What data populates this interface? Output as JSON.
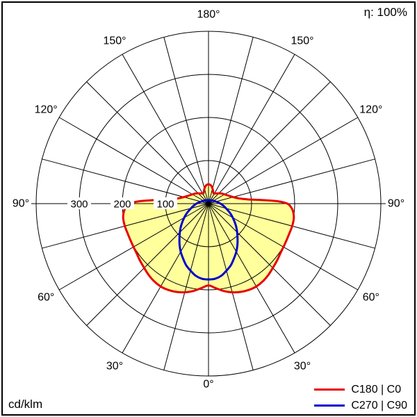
{
  "annotations": {
    "eta_label": "η: 100%"
  },
  "chart_data": {
    "type": "polar",
    "subtype": "luminous-intensity-distribution",
    "unit": "cd/klm",
    "gamma_zero_position": "bottom",
    "angle_grid_step_deg": 15,
    "angle_labels": [
      {
        "gamma": 0,
        "text": "0°"
      },
      {
        "gamma": 30,
        "text": "30°"
      },
      {
        "gamma": 60,
        "text": "60°"
      },
      {
        "gamma": 90,
        "text": "90°"
      },
      {
        "gamma": 120,
        "text": "120°"
      },
      {
        "gamma": 150,
        "text": "150°"
      },
      {
        "gamma": 180,
        "text": "180°"
      }
    ],
    "radial_ticks": [
      {
        "value": 100,
        "text": "100"
      },
      {
        "value": 200,
        "text": "200"
      },
      {
        "value": 300,
        "text": "300"
      }
    ],
    "radial_max": 400,
    "grid_color": "#000000",
    "series": [
      {
        "name": "C180 | C0",
        "color": "#e60000",
        "fill": "#ffff9c",
        "symmetric": true,
        "points_gamma_cd": [
          [
            0,
            190
          ],
          [
            5,
            197
          ],
          [
            10,
            206
          ],
          [
            15,
            213
          ],
          [
            20,
            218
          ],
          [
            25,
            221
          ],
          [
            30,
            222
          ],
          [
            35,
            220
          ],
          [
            40,
            216
          ],
          [
            45,
            211
          ],
          [
            50,
            207
          ],
          [
            55,
            203
          ],
          [
            60,
            201
          ],
          [
            65,
            200
          ],
          [
            70,
            200
          ],
          [
            75,
            201
          ],
          [
            80,
            201
          ],
          [
            84,
            198
          ],
          [
            87,
            193
          ],
          [
            90,
            183
          ],
          [
            92,
            160
          ],
          [
            94,
            122
          ],
          [
            96,
            93
          ],
          [
            98,
            80
          ],
          [
            100,
            71
          ],
          [
            105,
            59
          ],
          [
            110,
            52
          ],
          [
            115,
            47
          ],
          [
            120,
            43
          ],
          [
            125,
            40
          ],
          [
            130,
            37
          ],
          [
            135,
            34
          ],
          [
            140,
            31
          ],
          [
            145,
            29
          ],
          [
            150,
            27
          ],
          [
            155,
            27
          ],
          [
            160,
            31
          ],
          [
            165,
            36
          ],
          [
            170,
            41
          ],
          [
            175,
            44
          ],
          [
            180,
            45
          ]
        ]
      },
      {
        "name": "C270 | C90",
        "color": "#0000cc",
        "fill": null,
        "symmetric": true,
        "points_gamma_cd": [
          [
            0,
            176
          ],
          [
            5,
            175
          ],
          [
            10,
            170
          ],
          [
            15,
            161
          ],
          [
            20,
            152
          ],
          [
            25,
            140
          ],
          [
            30,
            129
          ],
          [
            35,
            117
          ],
          [
            40,
            105
          ],
          [
            45,
            94
          ],
          [
            50,
            84
          ],
          [
            55,
            74
          ],
          [
            60,
            65
          ],
          [
            65,
            57
          ],
          [
            70,
            49
          ],
          [
            75,
            42
          ],
          [
            80,
            37
          ],
          [
            85,
            32
          ],
          [
            90,
            28
          ],
          [
            95,
            24
          ],
          [
            100,
            21
          ],
          [
            105,
            18
          ],
          [
            110,
            16
          ],
          [
            115,
            14
          ],
          [
            120,
            13
          ],
          [
            130,
            12
          ],
          [
            140,
            10
          ],
          [
            150,
            9
          ],
          [
            160,
            8
          ],
          [
            170,
            8
          ],
          [
            180,
            8
          ]
        ]
      }
    ]
  }
}
